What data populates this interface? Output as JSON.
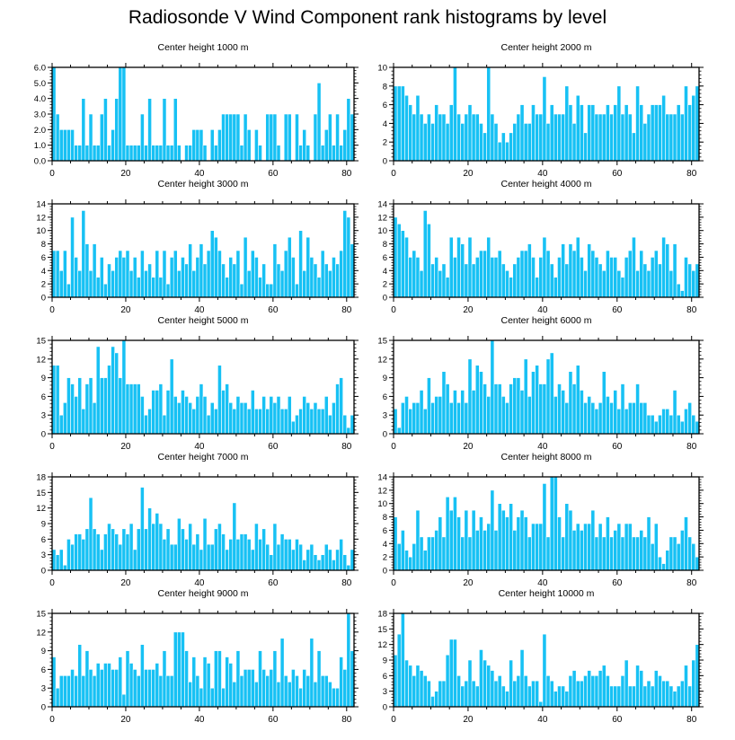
{
  "figure_title": "Radiosonde V Wind Component rank histograms by level",
  "colors": {
    "bar": "#17c1f4",
    "bar_edge": "#ffffff",
    "axis": "#000000"
  },
  "chart_data": [
    {
      "type": "bar",
      "title": "Center height 1000 m",
      "xlim": [
        0,
        82
      ],
      "ylim": [
        0,
        6
      ],
      "yticks": [
        0,
        1,
        2,
        3,
        4,
        5,
        6
      ],
      "ytick_labels": [
        "0.0",
        "1.0",
        "2.0",
        "3.0",
        "4.0",
        "5.0",
        "6.0"
      ],
      "xticks": [
        0,
        20,
        40,
        60,
        80
      ],
      "values": [
        6,
        3,
        2,
        2,
        2,
        2,
        1,
        1,
        4,
        1,
        3,
        1,
        1,
        3,
        4,
        1,
        2,
        4,
        6,
        6,
        1,
        1,
        1,
        1,
        3,
        1,
        4,
        1,
        1,
        1,
        4,
        1,
        1,
        4,
        1,
        0,
        1,
        1,
        2,
        2,
        2,
        1,
        0,
        2,
        1,
        2,
        3,
        3,
        3,
        3,
        3,
        1,
        3,
        2,
        0,
        2,
        1,
        0,
        3,
        3,
        3,
        1,
        0,
        3,
        3,
        0,
        3,
        1,
        2,
        1,
        0,
        3,
        5,
        1,
        2,
        3,
        1,
        3,
        1,
        2,
        4,
        3
      ]
    },
    {
      "type": "bar",
      "title": "Center height 2000 m",
      "xlim": [
        0,
        82
      ],
      "ylim": [
        0,
        10
      ],
      "yticks": [
        0,
        2,
        4,
        6,
        8,
        10
      ],
      "ytick_labels": [
        "0",
        "2",
        "4",
        "6",
        "8",
        "10"
      ],
      "xticks": [
        0,
        20,
        40,
        60,
        80
      ],
      "values": [
        8,
        8,
        8,
        7,
        6,
        5,
        7,
        5,
        4,
        5,
        4,
        6,
        5,
        5,
        4,
        6,
        10,
        5,
        4,
        5,
        6,
        5,
        5,
        4,
        3,
        10,
        5,
        4,
        2,
        3,
        2,
        3,
        4,
        5,
        6,
        4,
        4,
        6,
        5,
        5,
        9,
        4,
        6,
        5,
        5,
        5,
        8,
        6,
        4,
        7,
        6,
        3,
        6,
        6,
        5,
        5,
        5,
        6,
        5,
        6,
        8,
        5,
        6,
        5,
        3,
        8,
        6,
        4,
        5,
        6,
        6,
        6,
        7,
        5,
        5,
        5,
        6,
        5,
        8,
        6,
        7,
        8
      ]
    },
    {
      "type": "bar",
      "title": "Center height 3000 m",
      "xlim": [
        0,
        82
      ],
      "ylim": [
        0,
        14
      ],
      "yticks": [
        0,
        2,
        4,
        6,
        8,
        10,
        12,
        14
      ],
      "ytick_labels": [
        "0",
        "2",
        "4",
        "6",
        "8",
        "10",
        "12",
        "14"
      ],
      "xticks": [
        0,
        20,
        40,
        60,
        80
      ],
      "values": [
        7,
        7,
        4,
        7,
        2,
        12,
        6,
        4,
        13,
        8,
        4,
        8,
        3,
        6,
        2,
        5,
        4,
        6,
        7,
        6,
        7,
        4,
        6,
        3,
        7,
        4,
        5,
        3,
        7,
        3,
        7,
        2,
        6,
        7,
        4,
        6,
        5,
        8,
        4,
        6,
        8,
        5,
        7,
        10,
        9,
        7,
        5,
        3,
        6,
        5,
        7,
        2,
        9,
        4,
        7,
        6,
        3,
        5,
        2,
        2,
        8,
        5,
        4,
        7,
        9,
        6,
        2,
        10,
        4,
        9,
        6,
        5,
        3,
        7,
        5,
        4,
        6,
        5,
        7,
        13,
        12,
        8
      ]
    },
    {
      "type": "bar",
      "title": "Center height 4000 m",
      "xlim": [
        0,
        82
      ],
      "ylim": [
        0,
        14
      ],
      "yticks": [
        0,
        2,
        4,
        6,
        8,
        10,
        12,
        14
      ],
      "ytick_labels": [
        "0",
        "2",
        "4",
        "6",
        "8",
        "10",
        "12",
        "14"
      ],
      "xticks": [
        0,
        20,
        40,
        60,
        80
      ],
      "values": [
        12,
        11,
        10,
        9,
        6,
        7,
        6,
        4,
        13,
        11,
        5,
        6,
        4,
        5,
        3,
        9,
        6,
        9,
        8,
        5,
        9,
        5,
        6,
        7,
        7,
        9,
        6,
        6,
        7,
        5,
        4,
        3,
        5,
        6,
        7,
        7,
        8,
        6,
        3,
        6,
        9,
        7,
        5,
        3,
        6,
        8,
        5,
        8,
        7,
        9,
        6,
        4,
        8,
        7,
        6,
        5,
        4,
        7,
        6,
        6,
        4,
        3,
        6,
        7,
        9,
        4,
        7,
        5,
        4,
        6,
        7,
        5,
        9,
        8,
        4,
        8,
        2,
        1,
        6,
        5,
        4,
        5
      ]
    },
    {
      "type": "bar",
      "title": "Center height 5000 m",
      "xlim": [
        0,
        82
      ],
      "ylim": [
        0,
        15
      ],
      "yticks": [
        0,
        3,
        6,
        9,
        12,
        15
      ],
      "ytick_labels": [
        "0",
        "3",
        "6",
        "9",
        "12",
        "15"
      ],
      "xticks": [
        0,
        20,
        40,
        60,
        80
      ],
      "values": [
        11,
        11,
        3,
        5,
        9,
        8,
        6,
        9,
        4,
        8,
        9,
        5,
        14,
        9,
        9,
        11,
        14,
        13,
        9,
        15,
        8,
        8,
        8,
        8,
        6,
        3,
        4,
        7,
        7,
        8,
        3,
        7,
        12,
        6,
        5,
        7,
        6,
        5,
        4,
        6,
        8,
        6,
        3,
        5,
        4,
        11,
        7,
        8,
        5,
        4,
        6,
        5,
        5,
        4,
        7,
        4,
        4,
        6,
        4,
        6,
        5,
        6,
        4,
        4,
        6,
        2,
        3,
        4,
        6,
        5,
        4,
        5,
        4,
        4,
        6,
        3,
        5,
        8,
        9,
        3,
        1,
        3
      ]
    },
    {
      "type": "bar",
      "title": "Center height 6000 m",
      "xlim": [
        0,
        82
      ],
      "ylim": [
        0,
        15
      ],
      "yticks": [
        0,
        3,
        6,
        9,
        12,
        15
      ],
      "ytick_labels": [
        "0",
        "3",
        "6",
        "9",
        "12",
        "15"
      ],
      "xticks": [
        0,
        20,
        40,
        60,
        80
      ],
      "values": [
        4,
        1,
        5,
        6,
        4,
        5,
        5,
        7,
        4,
        9,
        5,
        6,
        6,
        10,
        8,
        5,
        7,
        5,
        7,
        5,
        12,
        7,
        11,
        10,
        8,
        6,
        15,
        8,
        8,
        6,
        5,
        8,
        9,
        9,
        7,
        12,
        6,
        10,
        11,
        8,
        8,
        12,
        13,
        6,
        8,
        7,
        5,
        10,
        8,
        11,
        7,
        5,
        6,
        5,
        4,
        5,
        10,
        6,
        5,
        7,
        4,
        8,
        4,
        5,
        5,
        8,
        5,
        5,
        3,
        3,
        2,
        3,
        4,
        4,
        3,
        7,
        3,
        2,
        4,
        5,
        3,
        2
      ]
    },
    {
      "type": "bar",
      "title": "Center height 7000 m",
      "xlim": [
        0,
        82
      ],
      "ylim": [
        0,
        18
      ],
      "yticks": [
        0,
        3,
        6,
        9,
        12,
        15,
        18
      ],
      "ytick_labels": [
        "0",
        "3",
        "6",
        "9",
        "12",
        "15",
        "18"
      ],
      "xticks": [
        0,
        20,
        40,
        60,
        80
      ],
      "values": [
        4,
        3,
        4,
        1,
        6,
        5,
        7,
        7,
        6,
        8,
        14,
        8,
        7,
        4,
        7,
        9,
        8,
        7,
        5,
        8,
        7,
        9,
        4,
        8,
        16,
        8,
        12,
        9,
        11,
        9,
        6,
        8,
        5,
        5,
        10,
        8,
        6,
        9,
        5,
        7,
        4,
        10,
        5,
        5,
        8,
        9,
        7,
        4,
        6,
        13,
        6,
        7,
        7,
        6,
        4,
        9,
        6,
        8,
        5,
        3,
        9,
        5,
        7,
        6,
        6,
        4,
        6,
        5,
        2,
        4,
        5,
        3,
        2,
        3,
        5,
        4,
        2,
        4,
        6,
        3,
        1,
        4
      ]
    },
    {
      "type": "bar",
      "title": "Center height 8000 m",
      "xlim": [
        0,
        82
      ],
      "ylim": [
        0,
        14
      ],
      "yticks": [
        0,
        2,
        4,
        6,
        8,
        10,
        12,
        14
      ],
      "ytick_labels": [
        "0",
        "2",
        "4",
        "6",
        "8",
        "10",
        "12",
        "14"
      ],
      "xticks": [
        0,
        20,
        40,
        60,
        80
      ],
      "values": [
        8,
        4,
        6,
        3,
        2,
        4,
        9,
        5,
        3,
        5,
        5,
        6,
        8,
        5,
        11,
        9,
        11,
        8,
        5,
        9,
        5,
        9,
        6,
        8,
        6,
        7,
        12,
        6,
        10,
        9,
        8,
        10,
        6,
        8,
        9,
        8,
        5,
        7,
        7,
        7,
        13,
        5,
        14,
        14,
        8,
        5,
        10,
        9,
        6,
        7,
        6,
        7,
        7,
        9,
        5,
        7,
        5,
        8,
        5,
        6,
        7,
        5,
        7,
        7,
        5,
        5,
        6,
        5,
        8,
        4,
        7,
        2,
        1,
        3,
        5,
        5,
        4,
        6,
        8,
        5,
        4,
        2
      ]
    },
    {
      "type": "bar",
      "title": "Center height 9000 m",
      "xlim": [
        0,
        82
      ],
      "ylim": [
        0,
        15
      ],
      "yticks": [
        0,
        3,
        6,
        9,
        12,
        15
      ],
      "ytick_labels": [
        "0",
        "3",
        "6",
        "9",
        "12",
        "15"
      ],
      "xticks": [
        0,
        20,
        40,
        60,
        80
      ],
      "values": [
        8,
        3,
        5,
        5,
        5,
        6,
        5,
        10,
        5,
        9,
        6,
        5,
        7,
        6,
        7,
        7,
        6,
        6,
        8,
        2,
        9,
        7,
        6,
        5,
        10,
        6,
        6,
        6,
        7,
        5,
        9,
        5,
        5,
        12,
        12,
        12,
        9,
        4,
        8,
        5,
        3,
        8,
        7,
        3,
        9,
        9,
        3,
        8,
        7,
        4,
        9,
        5,
        6,
        6,
        6,
        4,
        9,
        6,
        5,
        6,
        9,
        4,
        11,
        5,
        4,
        6,
        5,
        3,
        6,
        5,
        11,
        4,
        9,
        5,
        5,
        4,
        3,
        3,
        8,
        6,
        15,
        9
      ]
    },
    {
      "type": "bar",
      "title": "Center height 10000 m",
      "xlim": [
        0,
        82
      ],
      "ylim": [
        0,
        18
      ],
      "yticks": [
        0,
        3,
        6,
        9,
        12,
        15,
        18
      ],
      "ytick_labels": [
        "0",
        "3",
        "6",
        "9",
        "12",
        "15",
        "18"
      ],
      "xticks": [
        0,
        20,
        40,
        60,
        80
      ],
      "values": [
        10,
        14,
        18,
        9,
        8,
        6,
        8,
        7,
        6,
        5,
        2,
        3,
        5,
        5,
        10,
        13,
        13,
        6,
        4,
        5,
        9,
        5,
        4,
        11,
        9,
        8,
        7,
        5,
        6,
        4,
        3,
        9,
        5,
        6,
        11,
        6,
        4,
        5,
        5,
        1,
        14,
        6,
        5,
        3,
        4,
        4,
        3,
        6,
        7,
        5,
        5,
        6,
        7,
        6,
        6,
        7,
        8,
        6,
        4,
        4,
        4,
        6,
        9,
        4,
        4,
        8,
        7,
        4,
        5,
        4,
        7,
        6,
        5,
        5,
        4,
        3,
        4,
        5,
        8,
        4,
        9,
        12
      ]
    }
  ]
}
